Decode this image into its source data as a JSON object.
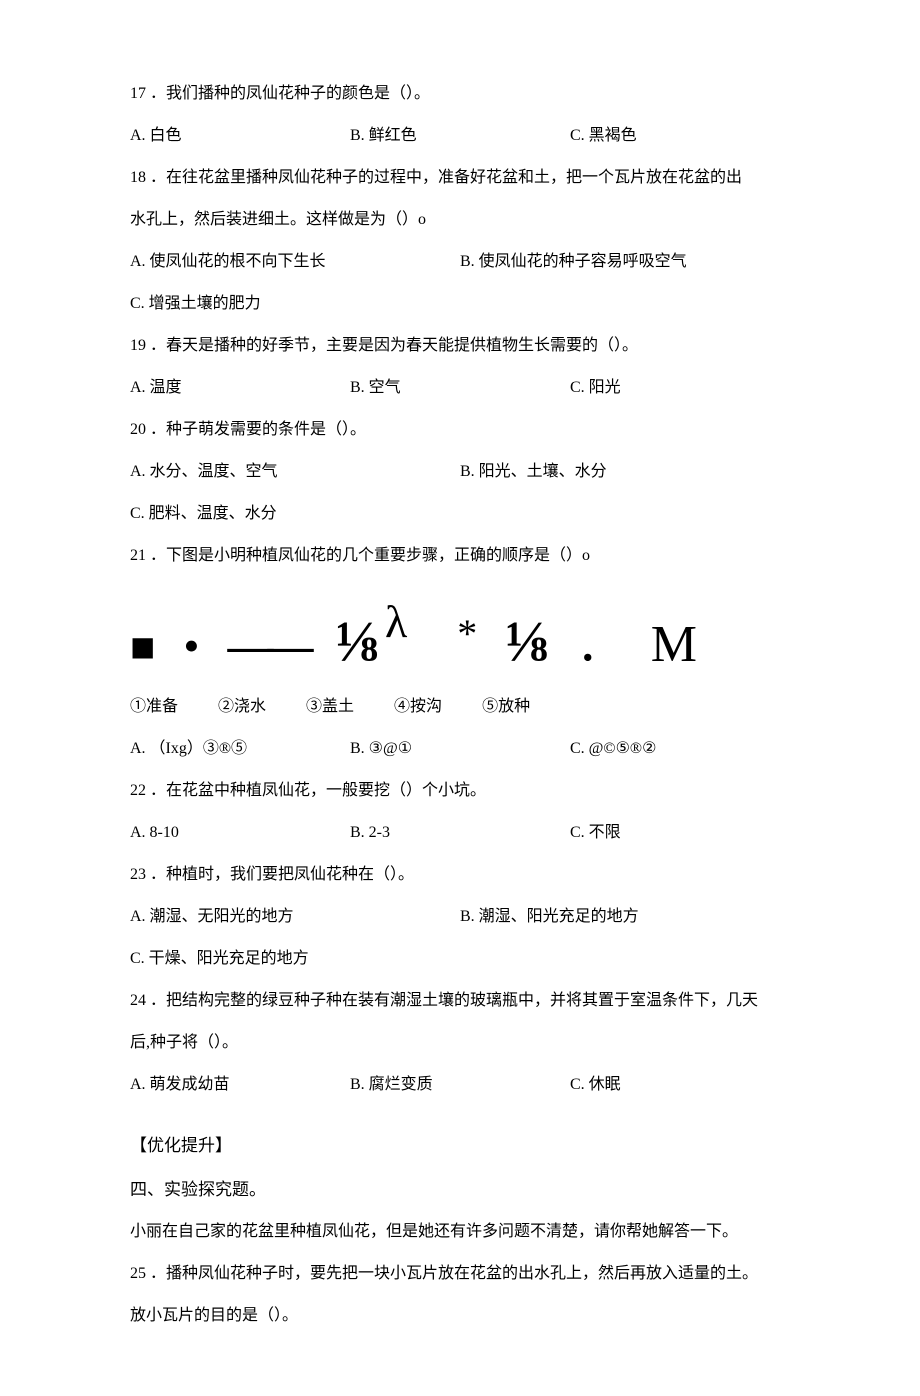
{
  "q17": {
    "text": "17 ．我们播种的凤仙花种子的颜色是（）。",
    "a": "A. 白色",
    "b": "B. 鲜红色",
    "c": "C. 黑褐色"
  },
  "q18": {
    "line1": "18 ．在往花盆里播种凤仙花种子的过程中，准备好花盆和土，把一个瓦片放在花盆的出",
    "line2": "水孔上，然后装进细土。这样做是为（）o",
    "a": "A. 使凤仙花的根不向下生长",
    "b": "B. 使凤仙花的种子容易呼吸空气",
    "c": "C. 增强土壤的肥力"
  },
  "q19": {
    "text": "19 ．春天是播种的好季节，主要是因为春天能提供植物生长需要的（）。",
    "a": "A. 温度",
    "b": "B. 空气",
    "c": "C. 阳光"
  },
  "q20": {
    "text": "20 ．种子萌发需要的条件是（）。",
    "a": "A. 水分、温度、空气",
    "b": "B. 阳光、土壤、水分",
    "c": "C. 肥料、温度、水分"
  },
  "q21": {
    "text": "21 ．下图是小明种植凤仙花的几个重要步骤，正确的顺序是（）o",
    "symbols": {
      "square": "■",
      "dot": "•",
      "dash": "——",
      "frac1": "⅛",
      "lambda": "λ",
      "star": "*",
      "frac2": "⅛",
      "period": "．",
      "m": "M"
    },
    "labels": {
      "l1": "①准备",
      "l2": "②浇水",
      "l3": "③盖土",
      "l4": "④按沟",
      "l5": "⑤放种"
    },
    "a": "A. （Ixg）③®⑤",
    "b": "B. ③@①",
    "c": "C. @©⑤®②"
  },
  "q22": {
    "text": "22 ．在花盆中种植凤仙花，一般要挖（）个小坑。",
    "a": "A. 8-10",
    "b": "B. 2-3",
    "c": "C. 不限"
  },
  "q23": {
    "text": "23 ．种植时，我们要把凤仙花种在（）。",
    "a": "A. 潮湿、无阳光的地方",
    "b": "B. 潮湿、阳光充足的地方",
    "c": "C. 干燥、阳光充足的地方"
  },
  "q24": {
    "line1": "24 ．把结构完整的绿豆种子种在装有潮湿土壤的玻璃瓶中，并将其置于室温条件下，几天",
    "line2": "后,种子将（）。",
    "a": "A. 萌发成幼苗",
    "b": "B. 腐烂变质",
    "c": "C. 休眠"
  },
  "section": {
    "heading": "【优化提升】",
    "sub": "四、实验探究题。",
    "intro": "小丽在自己家的花盆里种植凤仙花，但是她还有许多问题不清楚，请你帮她解答一下。"
  },
  "q25": {
    "line1": "25 ．播种凤仙花种子时，要先把一块小瓦片放在花盆的出水孔上，然后再放入适量的土。",
    "line2": "放小瓦片的目的是（）。"
  }
}
